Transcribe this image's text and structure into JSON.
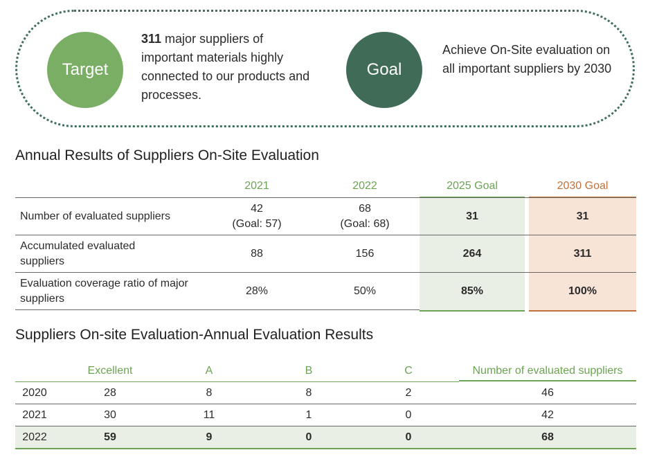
{
  "target": {
    "badge": "Target",
    "count": "311",
    "text": " major suppliers of important materials highly connected to our products and processes."
  },
  "goal": {
    "badge": "Goal",
    "text": "Achieve On-Site evaluation on all important suppliers by 2030"
  },
  "table1": {
    "title": "Annual Results of Suppliers On-Site Evaluation",
    "columns": [
      "2021",
      "2022",
      "2025 Goal",
      "2030 Goal"
    ],
    "rows": [
      {
        "label": "Number of evaluated suppliers",
        "y2021": "42",
        "y2021_note": "(Goal: 57)",
        "y2022": "68",
        "y2022_note": "(Goal: 68)",
        "g2025": "31",
        "g2030": "31"
      },
      {
        "label": "Accumulated evaluated suppliers",
        "y2021": "88",
        "y2022": "156",
        "g2025": "264",
        "g2030": "311"
      },
      {
        "label": "Evaluation coverage ratio of major suppliers",
        "y2021": "28%",
        "y2022": "50%",
        "g2025": "85%",
        "g2030": "100%"
      }
    ]
  },
  "table2": {
    "title": "Suppliers On-site Evaluation-Annual Evaluation Results",
    "columns": [
      "Excellent",
      "A",
      "B",
      "C",
      "Number of evaluated suppliers"
    ],
    "rows": [
      {
        "year": "2020",
        "excellent": "28",
        "a": "8",
        "b": "8",
        "c": "2",
        "total": "46"
      },
      {
        "year": "2021",
        "excellent": "30",
        "a": "11",
        "b": "1",
        "c": "0",
        "total": "42"
      },
      {
        "year": "2022",
        "excellent": "59",
        "a": "9",
        "b": "0",
        "c": "0",
        "total": "68"
      }
    ]
  },
  "colors": {
    "green_header": "#6aa452",
    "orange_header": "#c0703a",
    "target_circle": "#79ae64",
    "goal_circle": "#3f6b57"
  }
}
